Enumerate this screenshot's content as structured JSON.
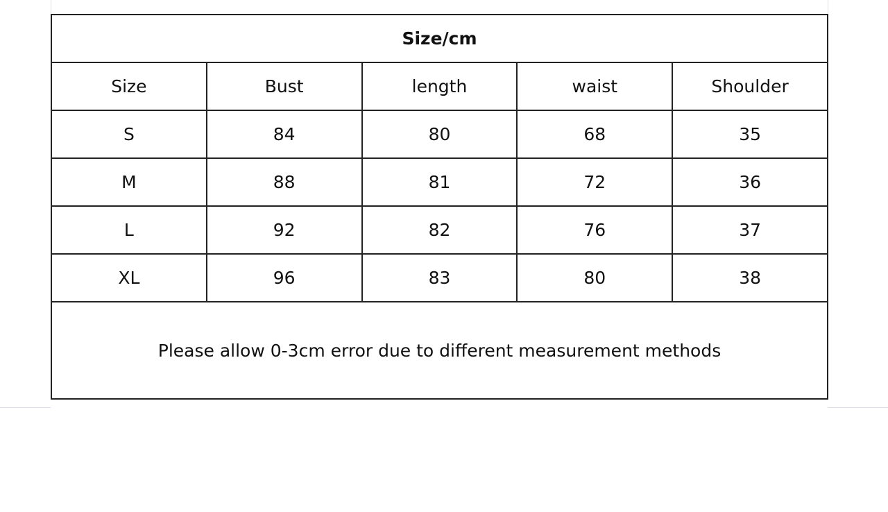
{
  "title": "Size/cm",
  "headers": [
    "Size",
    "Bust",
    "length",
    "waist",
    "Shoulder"
  ],
  "rows": [
    [
      "S",
      "84",
      "80",
      "68",
      "35"
    ],
    [
      "M",
      "88",
      "81",
      "72",
      "36"
    ],
    [
      "L",
      "92",
      "82",
      "76",
      "37"
    ],
    [
      "XL",
      "96",
      "83",
      "80",
      "38"
    ]
  ],
  "note": "Please allow 0-3cm error due to different measurement methods"
}
